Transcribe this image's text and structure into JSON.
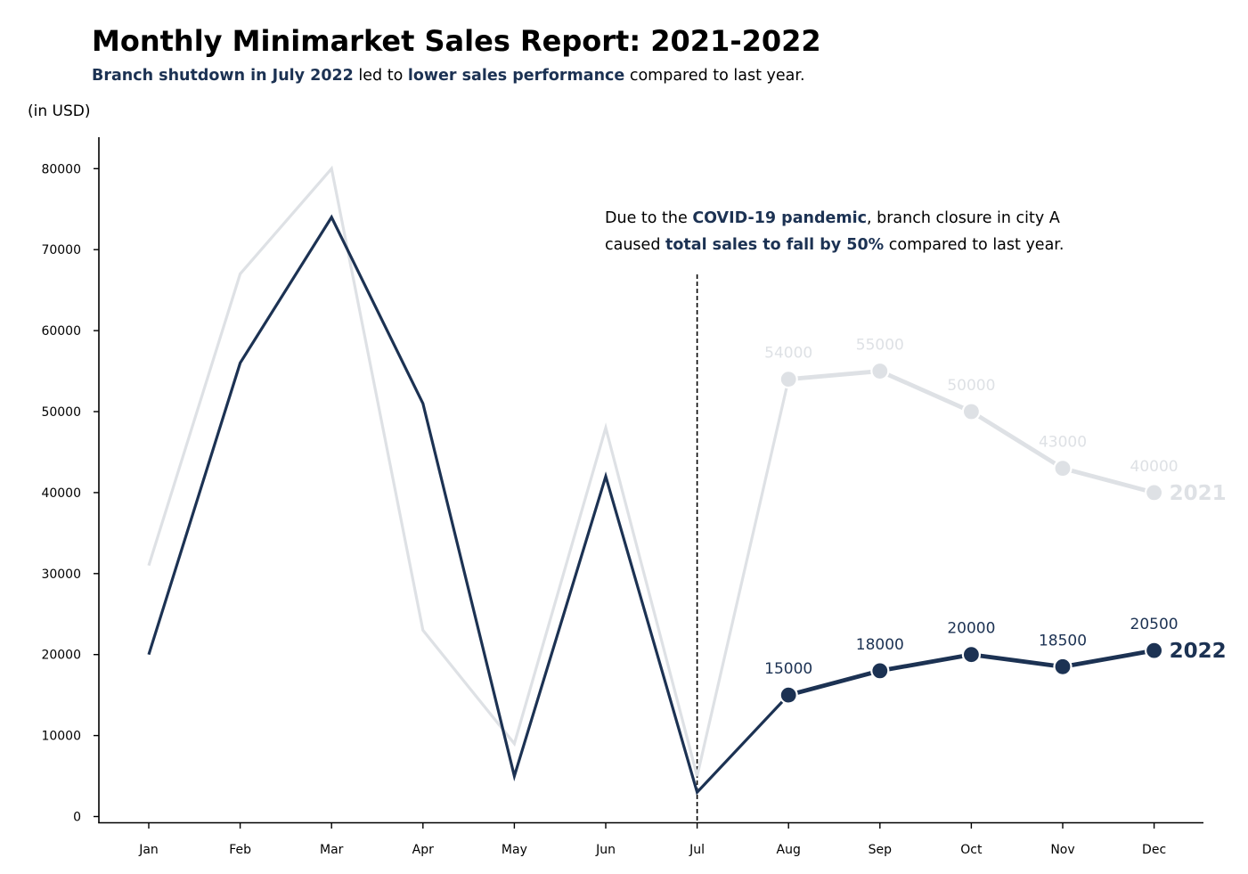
{
  "header": {
    "title": "Monthly Minimarket Sales Report: 2021-2022",
    "subtitle_parts": [
      {
        "text": "Branch shutdown in July 2022",
        "emphasis": true
      },
      {
        "text": " led to ",
        "emphasis": false
      },
      {
        "text": "lower sales performance",
        "emphasis": true
      },
      {
        "text": " compared to last year.",
        "emphasis": false
      }
    ]
  },
  "annotation": {
    "line1_parts": [
      {
        "text": "Due to the ",
        "emphasis": false
      },
      {
        "text": "COVID-19 pandemic",
        "emphasis": true
      },
      {
        "text": ", branch closure in city A",
        "emphasis": false
      }
    ],
    "line2_parts": [
      {
        "text": "caused ",
        "emphasis": false
      },
      {
        "text": "total sales to fall by 50%",
        "emphasis": true
      },
      {
        "text": " compared to last year.",
        "emphasis": false
      }
    ]
  },
  "colors": {
    "series_2021": "#dee1e5",
    "series_2022": "#1c3253",
    "emphasis": "#1c3253",
    "axis": "#000000"
  },
  "chart_data": {
    "type": "line",
    "title": "Monthly Minimarket Sales Report: 2021-2022",
    "ylabel": "(in USD)",
    "xlabel": "",
    "categories": [
      "Jan",
      "Feb",
      "Mar",
      "Apr",
      "May",
      "Jun",
      "Jul",
      "Aug",
      "Sep",
      "Oct",
      "Nov",
      "Dec"
    ],
    "ylim": [
      -700,
      84000
    ],
    "yticks": [
      0,
      10000,
      20000,
      30000,
      40000,
      50000,
      60000,
      70000,
      80000
    ],
    "grid": false,
    "legend": "none (series labeled at line ends)",
    "series": [
      {
        "name": "2021",
        "values": [
          31000,
          67000,
          80000,
          23000,
          9000,
          48000,
          5000,
          54000,
          55000,
          50000,
          43000,
          40000
        ],
        "labeled_from_index": 7
      },
      {
        "name": "2022",
        "values": [
          20000,
          56000,
          74000,
          51000,
          5000,
          42000,
          3000,
          15000,
          18000,
          20000,
          18500,
          20500
        ],
        "labeled_from_index": 7
      }
    ],
    "vline": {
      "category": "Jul",
      "style": "dashed"
    }
  }
}
